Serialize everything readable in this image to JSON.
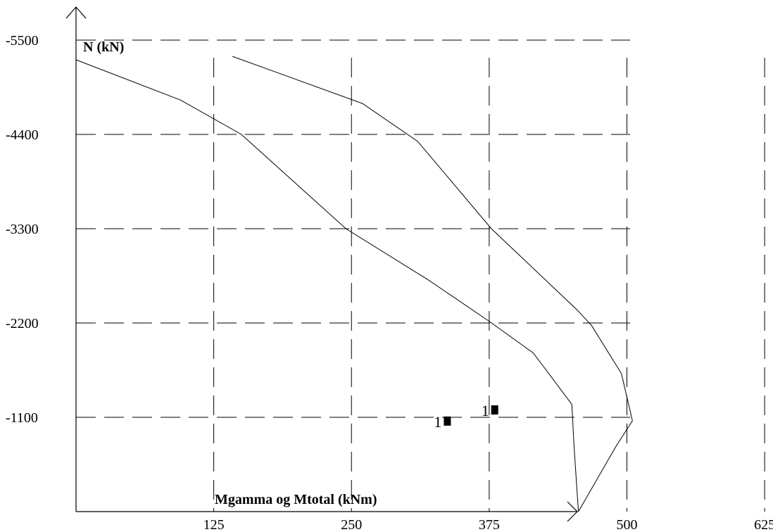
{
  "chart_data": {
    "type": "line",
    "xlabel": "Mgamma og Mtotal (kNm)",
    "ylabel": "N (kN)",
    "x_ticks": [
      125,
      250,
      375,
      500,
      625
    ],
    "y_ticks": [
      -5500,
      -4400,
      -3300,
      -2200,
      -1100
    ],
    "xlim": [
      0,
      625
    ],
    "ylim": [
      0,
      -5500
    ],
    "grid": true,
    "series": [
      {
        "points": [
          [
            0,
            -5270
          ],
          [
            95,
            -4800
          ],
          [
            150,
            -4400
          ],
          [
            245,
            -3300
          ],
          [
            320,
            -2700
          ],
          [
            375,
            -2220
          ],
          [
            415,
            -1850
          ],
          [
            450,
            -1250
          ],
          [
            452,
            -760
          ],
          [
            456,
            0
          ]
        ]
      },
      {
        "points": [
          [
            142,
            -5310
          ],
          [
            260,
            -4760
          ],
          [
            310,
            -4320
          ],
          [
            377,
            -3300
          ],
          [
            455,
            -2350
          ],
          [
            468,
            -2170
          ],
          [
            495,
            -1610
          ],
          [
            505,
            -1060
          ],
          [
            490,
            -760
          ],
          [
            456,
            0
          ]
        ]
      }
    ],
    "markers": [
      {
        "label": "1",
        "x": 337,
        "y": -1060
      },
      {
        "label": "1",
        "x": 380,
        "y": -1190
      }
    ]
  }
}
